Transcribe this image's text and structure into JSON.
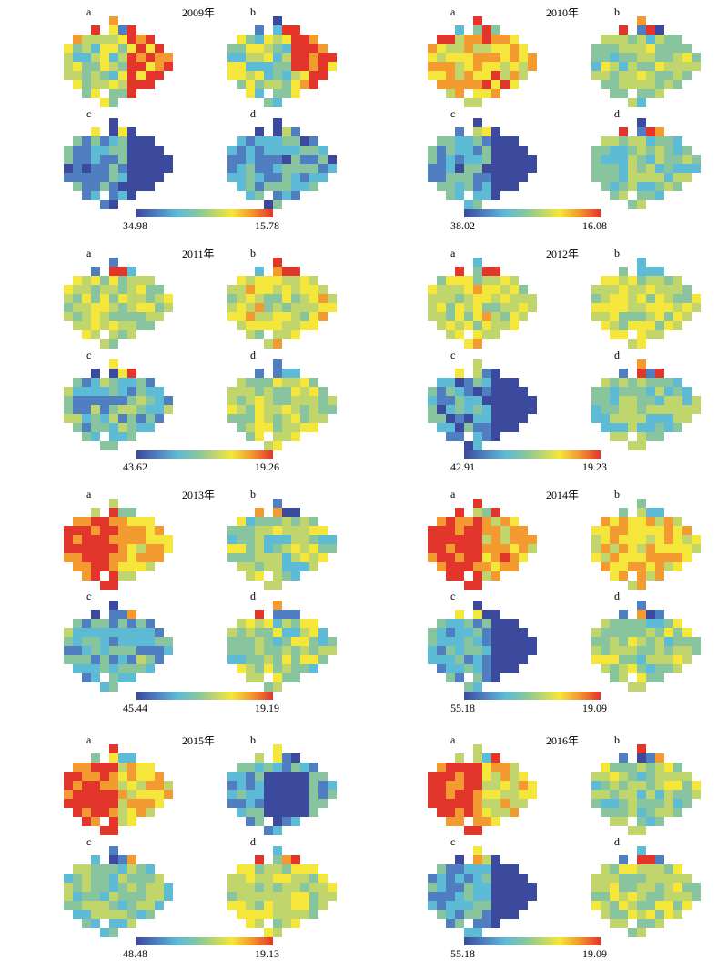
{
  "figure": {
    "years": [
      {
        "title": "2009年",
        "legend_min": "34.98",
        "legend_max": "15.78"
      },
      {
        "title": "2010年",
        "legend_min": "38.02",
        "legend_max": "16.08"
      },
      {
        "title": "2011年",
        "legend_min": "43.62",
        "legend_max": "19.26"
      },
      {
        "title": "2012年",
        "legend_min": "42.91",
        "legend_max": "19.23"
      },
      {
        "title": "2013年",
        "legend_min": "45.44",
        "legend_max": "19.19"
      },
      {
        "title": "2014年",
        "legend_min": "55.18",
        "legend_max": "19.09"
      },
      {
        "title": "2015年",
        "legend_min": "48.48",
        "legend_max": "19.13"
      },
      {
        "title": "2016年",
        "legend_min": "55.18",
        "legend_max": "19.09"
      }
    ],
    "panel_labels": [
      "a",
      "b",
      "c",
      "d"
    ],
    "colormap": [
      "#3b4a9c",
      "#4f7fc0",
      "#5ebbd6",
      "#88c59e",
      "#c0d66c",
      "#f4e63a",
      "#f39a30",
      "#e2352b"
    ]
  }
}
